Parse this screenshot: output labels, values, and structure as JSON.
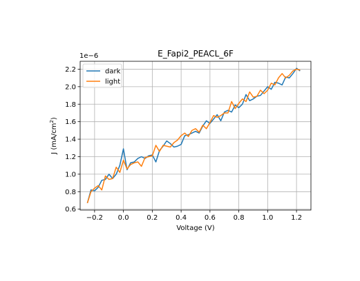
{
  "chart_data": {
    "type": "line",
    "title": "E_Fapi2_PEACL_6F",
    "xlabel": "Voltage (V)",
    "ylabel_main": "J (mA/cm",
    "ylabel_sup": "2",
    "ylabel_end": ")",
    "offset_label": "1e−6",
    "xlim": [
      -0.3,
      1.3
    ],
    "ylim": [
      0.59,
      2.29
    ],
    "xticks": [
      -0.2,
      0.0,
      0.2,
      0.4,
      0.6,
      0.8,
      1.0,
      1.2
    ],
    "xtick_labels": [
      "−0.2",
      "0.0",
      "0.2",
      "0.4",
      "0.6",
      "0.8",
      "1.0",
      "1.2"
    ],
    "yticks": [
      0.6,
      0.8,
      1.0,
      1.2,
      1.4,
      1.6,
      1.8,
      2.0,
      2.2
    ],
    "ytick_labels": [
      "0.6",
      "0.8",
      "1.0",
      "1.2",
      "1.4",
      "1.6",
      "1.8",
      "2.0",
      "2.2"
    ],
    "grid": true,
    "legend": "top-left",
    "x": [
      -0.25,
      -0.225,
      -0.2,
      -0.175,
      -0.15,
      -0.125,
      -0.1,
      -0.075,
      -0.05,
      -0.025,
      0.0,
      0.025,
      0.05,
      0.075,
      0.1,
      0.125,
      0.15,
      0.175,
      0.2,
      0.225,
      0.25,
      0.275,
      0.3,
      0.325,
      0.35,
      0.375,
      0.4,
      0.425,
      0.45,
      0.475,
      0.5,
      0.525,
      0.55,
      0.575,
      0.6,
      0.625,
      0.65,
      0.675,
      0.7,
      0.725,
      0.75,
      0.775,
      0.8,
      0.825,
      0.85,
      0.875,
      0.9,
      0.925,
      0.95,
      0.975,
      1.0,
      1.025,
      1.05,
      1.075,
      1.1,
      1.125,
      1.15,
      1.175,
      1.2,
      1.225
    ],
    "series": [
      {
        "name": "dark",
        "color": "#1f77b4",
        "values": [
          0.67,
          0.82,
          0.81,
          0.85,
          0.93,
          0.94,
          1.0,
          0.95,
          1.0,
          1.1,
          1.29,
          1.05,
          1.13,
          1.14,
          1.18,
          1.2,
          1.18,
          1.21,
          1.22,
          1.14,
          1.27,
          1.32,
          1.38,
          1.35,
          1.31,
          1.32,
          1.34,
          1.44,
          1.45,
          1.47,
          1.49,
          1.47,
          1.55,
          1.61,
          1.58,
          1.63,
          1.68,
          1.61,
          1.71,
          1.73,
          1.71,
          1.79,
          1.76,
          1.8,
          1.91,
          1.84,
          1.86,
          1.89,
          1.9,
          1.95,
          2.0,
          1.97,
          2.05,
          2.04,
          2.02,
          2.11,
          2.1,
          2.15,
          2.21,
          2.18
        ]
      },
      {
        "name": "light",
        "color": "#ff7f0e",
        "values": [
          0.67,
          0.8,
          0.84,
          0.87,
          0.82,
          0.98,
          0.94,
          0.95,
          1.08,
          1.02,
          1.16,
          1.06,
          1.11,
          1.13,
          1.14,
          1.09,
          1.19,
          1.2,
          1.21,
          1.33,
          1.26,
          1.33,
          1.32,
          1.31,
          1.36,
          1.39,
          1.44,
          1.47,
          1.43,
          1.5,
          1.52,
          1.48,
          1.56,
          1.52,
          1.59,
          1.67,
          1.65,
          1.67,
          1.7,
          1.7,
          1.83,
          1.75,
          1.81,
          1.86,
          1.83,
          1.94,
          1.88,
          1.89,
          1.96,
          1.92,
          1.96,
          2.04,
          2.02,
          2.1,
          2.15,
          2.1,
          2.13,
          2.18,
          2.2,
          2.19
        ]
      }
    ]
  }
}
